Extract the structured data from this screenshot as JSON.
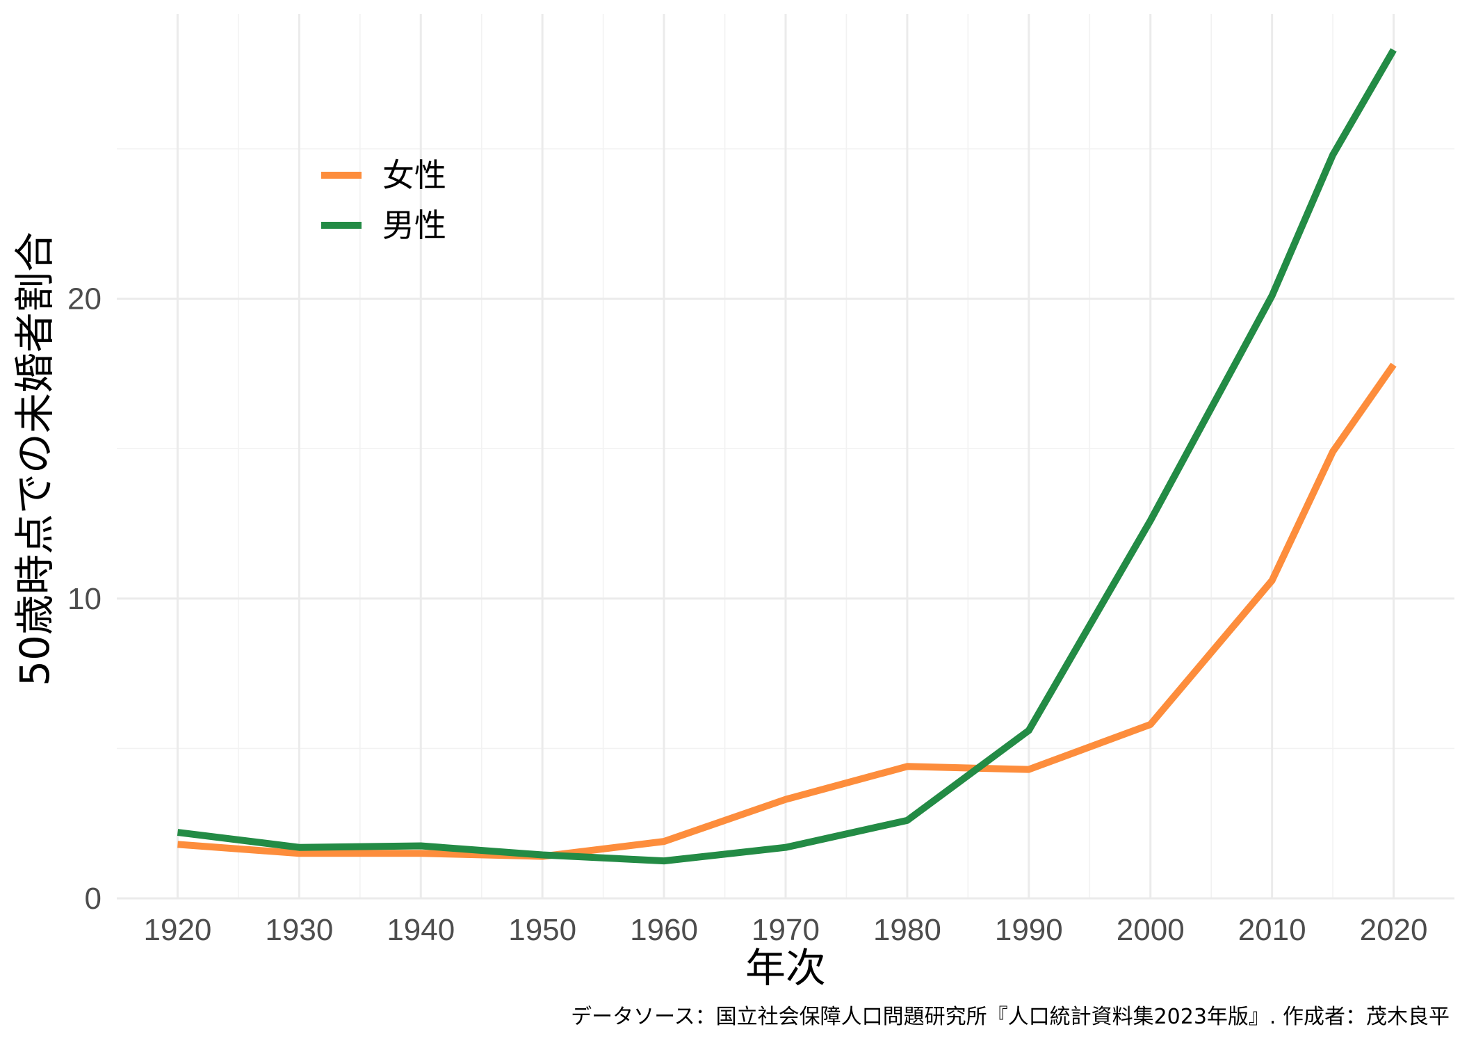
{
  "chart_data": {
    "type": "line",
    "xlabel": "年次",
    "ylabel": "50歳時点での未婚者割合",
    "caption": "データソース：国立社会保障人口問題研究所『人口統計資料集2023年版』. 作成者：茂木良平",
    "xlim": [
      1915,
      2025
    ],
    "ylim": [
      0,
      29.5
    ],
    "x_ticks": [
      1920,
      1930,
      1940,
      1950,
      1960,
      1970,
      1980,
      1990,
      2000,
      2010,
      2020
    ],
    "y_ticks": [
      0,
      10,
      20
    ],
    "grid": true,
    "legend_position": "top-left",
    "series": [
      {
        "name": "女性",
        "color": "#fd8d3c",
        "x": [
          1920,
          1930,
          1940,
          1950,
          1960,
          1970,
          1980,
          1990,
          2000,
          2010,
          2015,
          2020
        ],
        "values": [
          1.8,
          1.5,
          1.5,
          1.4,
          1.9,
          3.3,
          4.4,
          4.3,
          5.8,
          10.6,
          14.9,
          17.8
        ]
      },
      {
        "name": "男性",
        "color": "#238b45",
        "x": [
          1920,
          1930,
          1940,
          1950,
          1960,
          1970,
          1980,
          1990,
          2000,
          2010,
          2015,
          2020
        ],
        "values": [
          2.2,
          1.7,
          1.75,
          1.45,
          1.25,
          1.7,
          2.6,
          5.6,
          12.6,
          20.1,
          24.8,
          28.3
        ]
      }
    ]
  }
}
